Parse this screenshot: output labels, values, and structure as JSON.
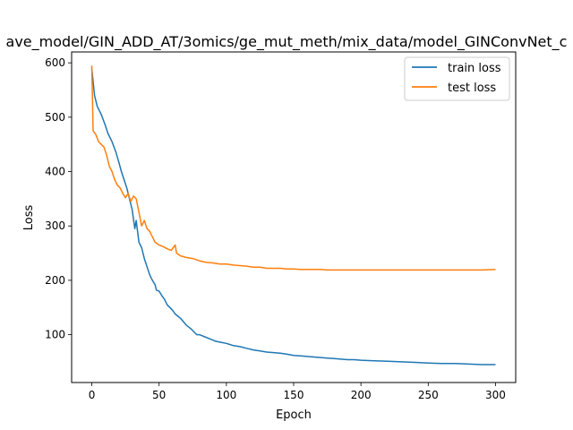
{
  "chart_data": {
    "type": "line",
    "title": "ave_model/GIN_ADD_AT/3omics/ge_mut_meth/mix_data/model_GINConvNet_c",
    "xlabel": "Epoch",
    "ylabel": "Loss",
    "xlim": [
      -15,
      315
    ],
    "ylim": [
      12,
      620
    ],
    "x_ticks": [
      0,
      50,
      100,
      150,
      200,
      250,
      300
    ],
    "y_ticks": [
      100,
      200,
      300,
      400,
      500,
      600
    ],
    "grid": false,
    "legend_position": "top-right",
    "series": [
      {
        "name": "train loss",
        "color": "#1f77b4",
        "points": [
          [
            0,
            590
          ],
          [
            2,
            540
          ],
          [
            4,
            520
          ],
          [
            7,
            505
          ],
          [
            10,
            485
          ],
          [
            12,
            470
          ],
          [
            15,
            455
          ],
          [
            18,
            435
          ],
          [
            20,
            418
          ],
          [
            22,
            400
          ],
          [
            24,
            385
          ],
          [
            26,
            370
          ],
          [
            28,
            350
          ],
          [
            30,
            330
          ],
          [
            32,
            295
          ],
          [
            33,
            310
          ],
          [
            35,
            270
          ],
          [
            37,
            260
          ],
          [
            39,
            240
          ],
          [
            41,
            225
          ],
          [
            43,
            210
          ],
          [
            45,
            200
          ],
          [
            47,
            192
          ],
          [
            48,
            182
          ],
          [
            50,
            180
          ],
          [
            52,
            172
          ],
          [
            54,
            165
          ],
          [
            56,
            155
          ],
          [
            58,
            150
          ],
          [
            60,
            145
          ],
          [
            62,
            138
          ],
          [
            64,
            134
          ],
          [
            66,
            130
          ],
          [
            68,
            124
          ],
          [
            70,
            118
          ],
          [
            72,
            114
          ],
          [
            74,
            110
          ],
          [
            76,
            105
          ],
          [
            78,
            100
          ],
          [
            80,
            100
          ],
          [
            84,
            96
          ],
          [
            88,
            92
          ],
          [
            92,
            88
          ],
          [
            96,
            86
          ],
          [
            100,
            84
          ],
          [
            105,
            80
          ],
          [
            110,
            78
          ],
          [
            115,
            75
          ],
          [
            120,
            72
          ],
          [
            125,
            70
          ],
          [
            130,
            68
          ],
          [
            135,
            67
          ],
          [
            140,
            66
          ],
          [
            145,
            64
          ],
          [
            150,
            62
          ],
          [
            155,
            61
          ],
          [
            160,
            60
          ],
          [
            165,
            59
          ],
          [
            170,
            58
          ],
          [
            175,
            57
          ],
          [
            180,
            56
          ],
          [
            185,
            55
          ],
          [
            190,
            54
          ],
          [
            195,
            54
          ],
          [
            200,
            53
          ],
          [
            210,
            52
          ],
          [
            220,
            51
          ],
          [
            230,
            50
          ],
          [
            240,
            49
          ],
          [
            250,
            48
          ],
          [
            260,
            47
          ],
          [
            270,
            47
          ],
          [
            280,
            46
          ],
          [
            290,
            45
          ],
          [
            295,
            45
          ],
          [
            300,
            45
          ]
        ]
      },
      {
        "name": "test loss",
        "color": "#ff7f0e",
        "points": [
          [
            0,
            595
          ],
          [
            1,
            475
          ],
          [
            3,
            468
          ],
          [
            5,
            455
          ],
          [
            7,
            450
          ],
          [
            9,
            445
          ],
          [
            11,
            430
          ],
          [
            13,
            410
          ],
          [
            15,
            400
          ],
          [
            17,
            385
          ],
          [
            19,
            375
          ],
          [
            21,
            370
          ],
          [
            23,
            360
          ],
          [
            25,
            352
          ],
          [
            27,
            360
          ],
          [
            29,
            345
          ],
          [
            31,
            355
          ],
          [
            33,
            350
          ],
          [
            35,
            325
          ],
          [
            37,
            300
          ],
          [
            39,
            310
          ],
          [
            41,
            295
          ],
          [
            43,
            290
          ],
          [
            45,
            280
          ],
          [
            47,
            270
          ],
          [
            50,
            265
          ],
          [
            53,
            262
          ],
          [
            56,
            258
          ],
          [
            59,
            255
          ],
          [
            62,
            265
          ],
          [
            63,
            250
          ],
          [
            66,
            245
          ],
          [
            70,
            242
          ],
          [
            75,
            240
          ],
          [
            80,
            236
          ],
          [
            85,
            233
          ],
          [
            90,
            232
          ],
          [
            95,
            230
          ],
          [
            100,
            230
          ],
          [
            105,
            228
          ],
          [
            110,
            227
          ],
          [
            115,
            226
          ],
          [
            120,
            224
          ],
          [
            125,
            224
          ],
          [
            130,
            222
          ],
          [
            135,
            222
          ],
          [
            140,
            222
          ],
          [
            145,
            221
          ],
          [
            150,
            221
          ],
          [
            155,
            220
          ],
          [
            160,
            220
          ],
          [
            165,
            220
          ],
          [
            170,
            220
          ],
          [
            175,
            219
          ],
          [
            180,
            219
          ],
          [
            185,
            219
          ],
          [
            190,
            219
          ],
          [
            195,
            219
          ],
          [
            200,
            219
          ],
          [
            210,
            219
          ],
          [
            220,
            219
          ],
          [
            230,
            219
          ],
          [
            240,
            219
          ],
          [
            250,
            219
          ],
          [
            260,
            219
          ],
          [
            270,
            219
          ],
          [
            280,
            219
          ],
          [
            290,
            219
          ],
          [
            300,
            220
          ]
        ]
      }
    ]
  }
}
